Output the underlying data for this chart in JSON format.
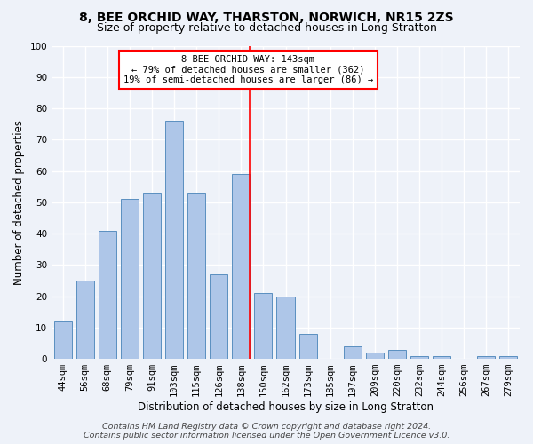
{
  "title": "8, BEE ORCHID WAY, THARSTON, NORWICH, NR15 2ZS",
  "subtitle": "Size of property relative to detached houses in Long Stratton",
  "xlabel": "Distribution of detached houses by size in Long Stratton",
  "ylabel": "Number of detached properties",
  "footer_line1": "Contains HM Land Registry data © Crown copyright and database right 2024.",
  "footer_line2": "Contains public sector information licensed under the Open Government Licence v3.0.",
  "annotation_line1": "8 BEE ORCHID WAY: 143sqm",
  "annotation_line2": "← 79% of detached houses are smaller (362)",
  "annotation_line3": "19% of semi-detached houses are larger (86) →",
  "bar_labels": [
    "44sqm",
    "56sqm",
    "68sqm",
    "79sqm",
    "91sqm",
    "103sqm",
    "115sqm",
    "126sqm",
    "138sqm",
    "150sqm",
    "162sqm",
    "173sqm",
    "185sqm",
    "197sqm",
    "209sqm",
    "220sqm",
    "232sqm",
    "244sqm",
    "256sqm",
    "267sqm",
    "279sqm"
  ],
  "bar_values": [
    12,
    25,
    41,
    51,
    53,
    76,
    53,
    27,
    59,
    21,
    20,
    8,
    0,
    4,
    2,
    3,
    1,
    1,
    0,
    1,
    1
  ],
  "bar_color": "#aec6e8",
  "bar_edge_color": "#5a8fc0",
  "vline_color": "red",
  "vline_bar_index": 8,
  "background_color": "#eef2f9",
  "grid_color": "#ffffff",
  "ylim": [
    0,
    100
  ],
  "yticks": [
    0,
    10,
    20,
    30,
    40,
    50,
    60,
    70,
    80,
    90,
    100
  ],
  "title_fontsize": 10,
  "subtitle_fontsize": 9,
  "ylabel_fontsize": 8.5,
  "xlabel_fontsize": 8.5,
  "tick_fontsize": 7.5,
  "annotation_fontsize": 7.5,
  "footer_fontsize": 6.8
}
